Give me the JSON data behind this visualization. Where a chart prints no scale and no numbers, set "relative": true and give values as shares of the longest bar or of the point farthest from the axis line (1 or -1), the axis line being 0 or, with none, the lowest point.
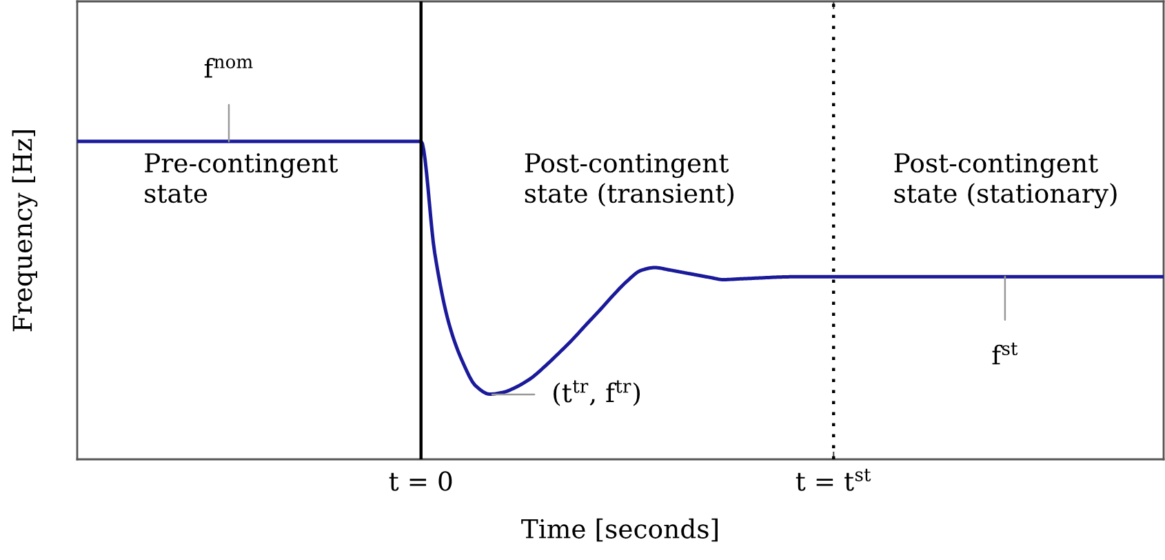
{
  "chart_data": {
    "type": "line",
    "xlabel": "Time [seconds]",
    "ylabel": "Frequency [Hz]",
    "relative": true,
    "categories": [
      null,
      null,
      null,
      null,
      null,
      null,
      null,
      null,
      null,
      null,
      null,
      null,
      null,
      null,
      null,
      null,
      null,
      null,
      null,
      null,
      null,
      null,
      null,
      null,
      null,
      "t = 0",
      null,
      null,
      null,
      null,
      null,
      null,
      null,
      null,
      null,
      null,
      null,
      null,
      null,
      null,
      null,
      null,
      null,
      null,
      null,
      null,
      null,
      null,
      null,
      null,
      null,
      null,
      null,
      null,
      null,
      "t = t$^{st}$",
      null,
      null,
      null,
      null,
      null,
      null,
      null,
      null,
      null,
      null,
      null,
      null,
      null,
      null,
      null,
      null,
      null,
      null,
      null,
      null,
      null,
      null,
      null,
      null
    ],
    "series": [
      {
        "color": "#1a1a9a",
        "values": [
          1.0,
          1.0,
          1.0,
          1.0,
          1.0,
          1.0,
          1.0,
          1.0,
          1.0,
          1.0,
          1.0,
          1.0,
          1.0,
          1.0,
          1.0,
          1.0,
          1.0,
          1.0,
          1.0,
          1.0,
          1.0,
          1.0,
          1.0,
          1.0,
          1.0,
          1.0,
          0.648,
          0.432,
          0.309,
          0.23,
          0.205,
          0.211,
          0.229,
          0.255,
          0.292,
          0.333,
          0.376,
          0.423,
          0.469,
          0.517,
          0.561,
          0.594,
          0.603,
          0.596,
          0.588,
          0.58,
          0.572,
          0.565,
          0.567,
          0.569,
          0.571,
          0.573,
          0.574,
          0.574,
          0.574,
          0.574,
          0.574,
          0.574,
          0.574,
          0.574,
          0.574,
          0.574,
          0.574,
          0.574,
          0.574,
          0.574,
          0.574,
          0.574,
          0.574,
          0.574,
          0.574,
          0.574,
          0.574,
          0.574,
          0.574,
          0.574,
          0.574,
          0.574,
          0.574,
          0.574
        ]
      }
    ],
    "ref_lines": [
      {
        "axis": "x",
        "value": "t = 0",
        "color": "#000000",
        "line_style": "solid"
      },
      {
        "axis": "x",
        "value": "t = t$^{st}$",
        "color": "#000000",
        "line_style": "dotted"
      }
    ],
    "annotations": [
      "Pre-contingent\nstate",
      "Post-contingent\nstate (transient)",
      "Post-contingent\nstate (stationary)",
      "(t$^{tr}$, f$^{tr}$)",
      {
        "text": "f$^{nom}$",
        "y": 1.0
      },
      {
        "text": "f$^{st}$",
        "y": 0.574
      }
    ],
    "grid": false,
    "legend": false,
    "marker": "none",
    "line_style": "solid"
  }
}
